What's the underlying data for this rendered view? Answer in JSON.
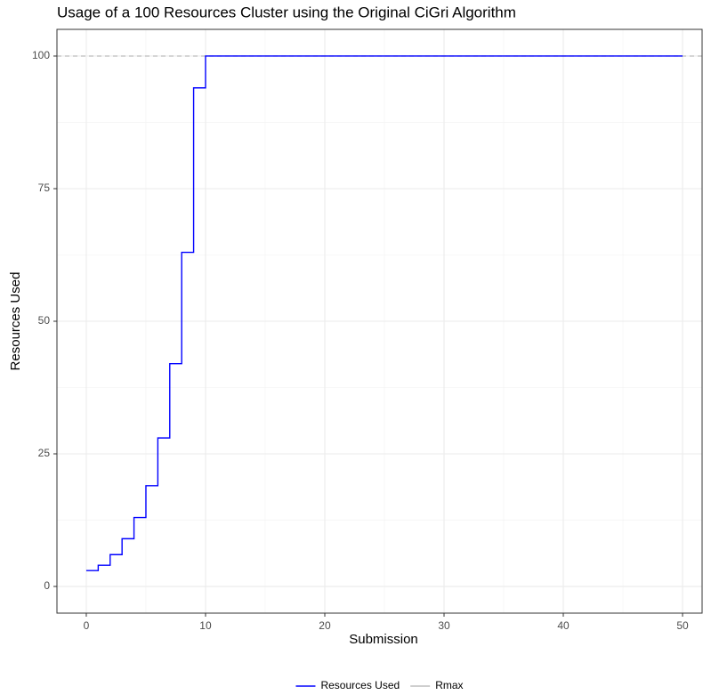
{
  "chart_data": {
    "type": "step",
    "title": "Usage of a 100 Resources Cluster using the Original CiGri Algorithm",
    "x_label": "Submission",
    "y_label": "Resources Used",
    "x": [
      0,
      1,
      2,
      3,
      4,
      5,
      6,
      7,
      8,
      9,
      10,
      11,
      12,
      13,
      14,
      15,
      16,
      17,
      18,
      19,
      20,
      21,
      22,
      23,
      24,
      25,
      26,
      27,
      28,
      29,
      30,
      31,
      32,
      33,
      34,
      35,
      36,
      37,
      38,
      39,
      40,
      41,
      42,
      43,
      44,
      45,
      46,
      47,
      48,
      49,
      50
    ],
    "series": [
      {
        "name": "Resources Used",
        "color": "#0000ff",
        "values": [
          3,
          4,
          6,
          9,
          13,
          19,
          28,
          42,
          63,
          94,
          100,
          100,
          100,
          100,
          100,
          100,
          100,
          100,
          100,
          100,
          100,
          100,
          100,
          100,
          100,
          100,
          100,
          100,
          100,
          100,
          100,
          100,
          100,
          100,
          100,
          100,
          100,
          100,
          100,
          100,
          100,
          100,
          100,
          100,
          100,
          100,
          100,
          100,
          100,
          100,
          100
        ]
      }
    ],
    "hlines": [
      {
        "name": "Rmax",
        "value": 100,
        "color": "#bebebe"
      }
    ],
    "xlim": [
      -2.46,
      51.64
    ],
    "ylim": [
      -5.03,
      105.03
    ],
    "xticks": [
      0,
      10,
      20,
      30,
      40,
      50
    ],
    "yticks": [
      0,
      25,
      50,
      75,
      100
    ],
    "grid": true,
    "legend": "bottom"
  }
}
